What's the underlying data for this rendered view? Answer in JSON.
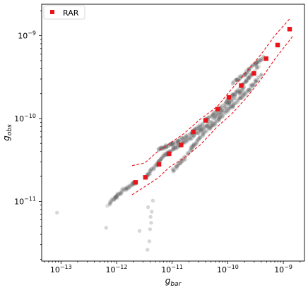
{
  "chart_data": {
    "type": "scatter",
    "title": "",
    "xlabel": "g",
    "xlabel_sub": "bar",
    "ylabel": "g",
    "ylabel_sub": "obs",
    "xscale": "log",
    "yscale": "log",
    "xlim": [
      4.5e-14,
      2.4e-09
    ],
    "ylim": [
      1.9e-12,
      2.4e-09
    ],
    "grid": false,
    "legend_position": "top-left",
    "x_tick_labels": [
      {
        "value": 1e-13,
        "base": "10",
        "exp": "−13"
      },
      {
        "value": 1e-12,
        "base": "10",
        "exp": "−12"
      },
      {
        "value": 1e-11,
        "base": "10",
        "exp": "−11"
      },
      {
        "value": 1e-10,
        "base": "10",
        "exp": "−10"
      },
      {
        "value": 1e-09,
        "base": "10",
        "exp": "−9"
      }
    ],
    "y_tick_labels": [
      {
        "value": 1e-11,
        "base": "10",
        "exp": "−11"
      },
      {
        "value": 1e-10,
        "base": "10",
        "exp": "−10"
      },
      {
        "value": 1e-09,
        "base": "10",
        "exp": "−9"
      }
    ],
    "colors": {
      "rar": "#e8141a",
      "band": "#e8141a",
      "cloud": "#6f6f6f"
    },
    "series": [
      {
        "name": "RAR",
        "style": "square",
        "x": [
          2.2e-12,
          3.3e-12,
          5.8e-12,
          8.8e-12,
          1.45e-11,
          2.4e-11,
          4e-11,
          6.6e-11,
          1.05e-10,
          1.75e-10,
          2.95e-10,
          4.9e-10,
          7.9e-10,
          1.3e-09
        ],
        "y": [
          1.7e-11,
          1.95e-11,
          2.8e-11,
          3.75e-11,
          4.8e-11,
          6.9e-11,
          9.5e-11,
          1.3e-10,
          1.8e-10,
          2.5e-10,
          3.5e-10,
          5.3e-10,
          7.7e-10,
          1.2e-09
        ]
      },
      {
        "name": "",
        "style": "dashed-line",
        "x": [
          1.9e-12,
          3.2e-12,
          5.5e-12,
          9e-12,
          1.6e-11,
          3.2e-11,
          6.5e-11,
          1.2e-10,
          2.2e-10,
          4e-10,
          7e-10,
          1.3e-09
        ],
        "y": [
          2.7e-11,
          2.9e-11,
          4e-11,
          5e-11,
          6.5e-11,
          9.8e-11,
          1.4e-10,
          2.3e-10,
          3.7e-10,
          6e-10,
          1e-09,
          1.6e-09
        ]
      },
      {
        "name": "",
        "style": "dashed-line",
        "x": [
          1.9e-12,
          3.2e-12,
          5.5e-12,
          9e-12,
          1.6e-11,
          3.2e-11,
          6.5e-11,
          1.2e-10,
          2.2e-10,
          4e-10,
          7e-10,
          1.5e-09
        ],
        "y": [
          1.2e-11,
          1.5e-11,
          1.9e-11,
          2.6e-11,
          3.3e-11,
          4.8e-11,
          8e-11,
          1.15e-10,
          1.8e-10,
          3e-10,
          5.2e-10,
          1e-09
        ]
      }
    ],
    "scatter_cloud": {
      "name": "",
      "outliers": [
        {
          "x": 8.5e-14,
          "y": 7.3e-12
        },
        {
          "x": 6.5e-13,
          "y": 4.8e-12
        },
        {
          "x": 2.6e-12,
          "y": 4.4e-12
        },
        {
          "x": 3.6e-12,
          "y": 2.6e-12
        },
        {
          "x": 3.9e-12,
          "y": 3.3e-12
        },
        {
          "x": 4e-12,
          "y": 4.6e-12
        },
        {
          "x": 4.2e-12,
          "y": 5.5e-12
        },
        {
          "x": 4.1e-12,
          "y": 6.5e-12
        },
        {
          "x": 4.3e-12,
          "y": 7.5e-12
        },
        {
          "x": 3.7e-12,
          "y": 8.5e-12
        },
        {
          "x": 4.5e-12,
          "y": 1.02e-11
        }
      ],
      "tracks": [
        {
          "x": [
            7e-13,
            1e-12,
            1.5e-12,
            2.2e-12
          ],
          "y": [
            9e-12,
            1.15e-11,
            1.45e-11,
            1.7e-11
          ]
        },
        {
          "x": [
            3.5e-12,
            5e-12,
            7e-12,
            1e-11,
            1.5e-11,
            2.5e-11,
            4e-11,
            7e-11,
            1.1e-10,
            2e-10
          ],
          "y": [
            2e-11,
            2.7e-11,
            3.5e-11,
            4.2e-11,
            5e-11,
            6.3e-11,
            8e-11,
            1.15e-10,
            1.6e-10,
            2.4e-10
          ]
        },
        {
          "x": [
            5.5e-12,
            8e-12,
            1.2e-11,
            1.8e-11,
            3e-11,
            5e-11,
            8e-11,
            1.3e-10,
            2.2e-10,
            3.5e-10
          ],
          "y": [
            4.2e-11,
            4.6e-11,
            5.2e-11,
            6e-11,
            8e-11,
            1.05e-10,
            1.4e-10,
            1.95e-10,
            2.9e-10,
            4.3e-10
          ]
        },
        {
          "x": [
            1e-11,
            1.6e-11,
            2.5e-11,
            4e-11,
            6.5e-11,
            1e-10,
            1.6e-10,
            2.5e-10,
            4e-10
          ],
          "y": [
            2.3e-11,
            3.2e-11,
            4.8e-11,
            7e-11,
            9.5e-11,
            1.25e-10,
            1.7e-10,
            2.3e-10,
            3.3e-10
          ]
        },
        {
          "x": [
            1.2e-10,
            2e-10,
            3e-10,
            4.5e-10
          ],
          "y": [
            2.6e-10,
            3.4e-10,
            4.5e-10,
            5.6e-10
          ]
        }
      ]
    }
  }
}
